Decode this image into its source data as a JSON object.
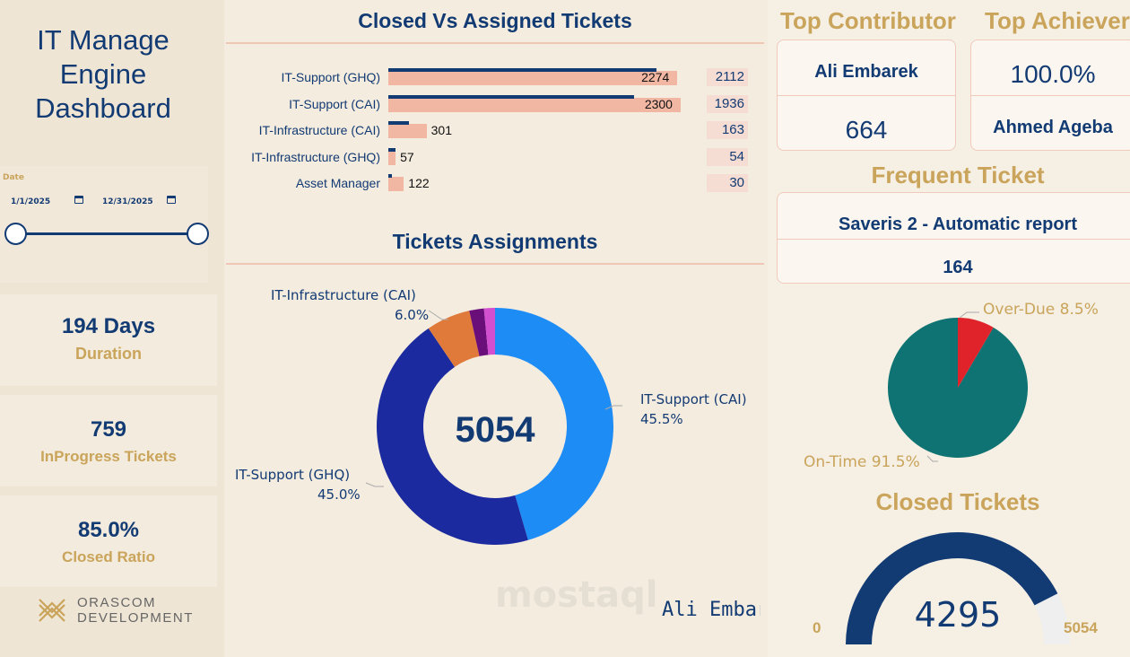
{
  "header": {
    "title_line1": "IT Manage",
    "title_line2": "Engine",
    "title_line3": "Dashboard"
  },
  "date_filter": {
    "label": "Date",
    "start": "1/1/2025",
    "end": "12/31/2025"
  },
  "kpis": [
    {
      "value": "194 Days",
      "label": "Duration"
    },
    {
      "value": "759",
      "label": "InProgress Tickets"
    },
    {
      "value": "85.0%",
      "label": "Closed Ratio"
    }
  ],
  "logo": {
    "line1": "ORASCOM",
    "line2": "DEVELOPMENT"
  },
  "ticker_text": "Ali Embarek",
  "watermark": "mostaql",
  "closed_vs_assigned": {
    "title": "Closed Vs Assigned Tickets",
    "rows": [
      {
        "name": "IT-Support (GHQ)",
        "closed": 2274,
        "assigned": 2112
      },
      {
        "name": "IT-Support (CAI)",
        "closed": 2300,
        "assigned": 1936
      },
      {
        "name": "IT-Infrastructure (CAI)",
        "closed": 301,
        "assigned": 163
      },
      {
        "name": "IT-Infrastructure (GHQ)",
        "closed": 57,
        "assigned": 54
      },
      {
        "name": "Asset Manager",
        "closed": 122,
        "assigned": 30
      }
    ]
  },
  "tickets_assignments": {
    "title": "Tickets Assignments",
    "total": "5054",
    "labels": [
      {
        "name": "IT-Infrastructure (CAI)",
        "pct": "6.0%"
      },
      {
        "name": "IT-Support (CAI)",
        "pct": "45.5%"
      },
      {
        "name": "IT-Support (GHQ)",
        "pct": "45.0%"
      }
    ]
  },
  "chart_data": [
    {
      "type": "bar",
      "title": "Closed Vs Assigned Tickets",
      "orientation": "horizontal",
      "categories": [
        "IT-Support (GHQ)",
        "IT-Support (CAI)",
        "IT-Infrastructure (CAI)",
        "IT-Infrastructure (GHQ)",
        "Asset Manager"
      ],
      "series": [
        {
          "values": [
            2274,
            2300,
            301,
            57,
            122
          ],
          "color": "#f2b7a3"
        },
        {
          "values": [
            2112,
            1936,
            163,
            54,
            30
          ],
          "color": "#123a73"
        }
      ],
      "xlim": [
        0,
        2400
      ]
    },
    {
      "type": "pie",
      "title": "Tickets Assignments",
      "donut": true,
      "center_value": 5054,
      "slices": [
        {
          "name": "IT-Support (CAI)",
          "value": 45.5,
          "color": "#1e8cf5"
        },
        {
          "name": "IT-Support (GHQ)",
          "value": 45.0,
          "color": "#1b2a9e"
        },
        {
          "name": "IT-Infrastructure (CAI)",
          "value": 6.0,
          "color": "#e07a3a"
        },
        {
          "name": "IT-Infrastructure (GHQ)",
          "value": 2.0,
          "color": "#6a0f7a"
        },
        {
          "name": "Asset Manager",
          "value": 1.5,
          "color": "#d24fd0"
        }
      ]
    },
    {
      "type": "pie",
      "slices": [
        {
          "name": "On-Time",
          "value": 91.5,
          "color": "#0e7372"
        },
        {
          "name": "Over-Due",
          "value": 8.5,
          "color": "#e0222b"
        }
      ]
    },
    {
      "type": "gauge",
      "title": "Closed Tickets",
      "value": 4295,
      "min": 0,
      "max": 5054,
      "color": "#123a73"
    }
  ],
  "top_contributor": {
    "title": "Top Contributor",
    "name": "Ali Embarek",
    "value": "664"
  },
  "top_achiever": {
    "title": "Top Achiever",
    "value": "100.0%",
    "name": "Ahmed Ageba"
  },
  "frequent_ticket": {
    "title": "Frequent Ticket",
    "name": "Saveris 2 - Automatic report",
    "value": "164"
  },
  "sla_pie": {
    "over_due": "Over-Due 8.5%",
    "on_time": "On-Time 91.5%"
  },
  "closed_tickets": {
    "title": "Closed Tickets",
    "value": "4295",
    "min": "0",
    "max": "5054"
  }
}
